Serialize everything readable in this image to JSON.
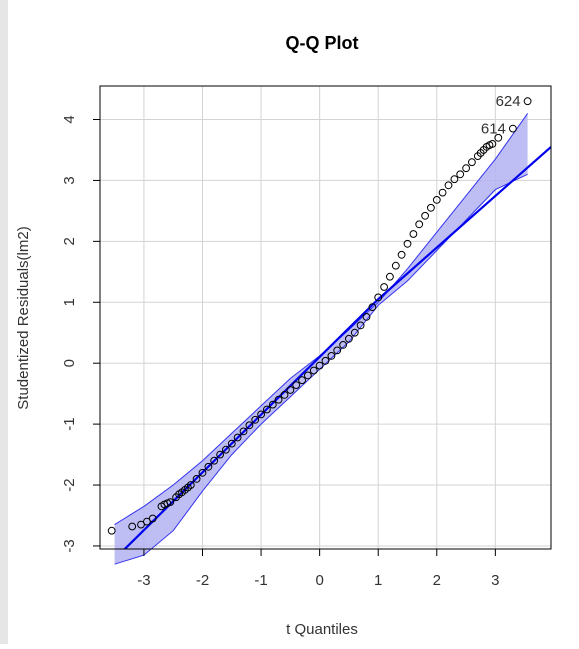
{
  "chart_data": {
    "type": "scatter",
    "title": "Q-Q Plot",
    "xlabel": "t Quantiles",
    "ylabel": "Studentized Residuals(lm2)",
    "xlim": [
      -3.75,
      3.95
    ],
    "ylim": [
      -3.05,
      4.55
    ],
    "x_ticks": [
      "-3",
      "-2",
      "-1",
      "0",
      "1",
      "2",
      "3"
    ],
    "y_ticks": [
      "-3",
      "-2",
      "-1",
      "0",
      "1",
      "2",
      "3",
      "4"
    ],
    "grid": true,
    "colors": {
      "points": "#000000",
      "line": "#0000ee",
      "band_fill": "#b3b3f2",
      "band_edge": "#3333ee",
      "grid": "#d3d3d3"
    },
    "points_x": [
      -3.55,
      -3.2,
      -3.05,
      -2.95,
      -2.85,
      -2.7,
      -2.65,
      -2.6,
      -2.55,
      -2.45,
      -2.4,
      -2.35,
      -2.3,
      -2.25,
      -2.2,
      -2.1,
      -2.0,
      -1.9,
      -1.8,
      -1.7,
      -1.6,
      -1.5,
      -1.4,
      -1.3,
      -1.2,
      -1.1,
      -1.0,
      -0.9,
      -0.8,
      -0.7,
      -0.6,
      -0.5,
      -0.4,
      -0.3,
      -0.2,
      -0.1,
      0.0,
      0.1,
      0.2,
      0.3,
      0.4,
      0.5,
      0.6,
      0.7,
      0.8,
      0.9,
      1.0,
      1.1,
      1.2,
      1.3,
      1.4,
      1.5,
      1.6,
      1.7,
      1.8,
      1.9,
      2.0,
      2.1,
      2.2,
      2.3,
      2.4,
      2.5,
      2.6,
      2.7,
      2.75,
      2.8,
      2.85,
      2.9,
      2.95,
      3.05,
      3.3,
      3.55
    ],
    "points_y": [
      -2.75,
      -2.68,
      -2.65,
      -2.6,
      -2.55,
      -2.35,
      -2.32,
      -2.3,
      -2.28,
      -2.2,
      -2.15,
      -2.12,
      -2.08,
      -2.04,
      -2.0,
      -1.9,
      -1.8,
      -1.7,
      -1.6,
      -1.5,
      -1.42,
      -1.32,
      -1.22,
      -1.12,
      -1.02,
      -0.93,
      -0.84,
      -0.76,
      -0.68,
      -0.6,
      -0.52,
      -0.44,
      -0.36,
      -0.28,
      -0.2,
      -0.12,
      -0.04,
      0.04,
      0.12,
      0.21,
      0.3,
      0.4,
      0.5,
      0.62,
      0.76,
      0.92,
      1.08,
      1.25,
      1.42,
      1.6,
      1.78,
      1.96,
      2.12,
      2.28,
      2.42,
      2.55,
      2.68,
      2.8,
      2.92,
      3.02,
      3.1,
      3.2,
      3.3,
      3.4,
      3.45,
      3.5,
      3.55,
      3.58,
      3.6,
      3.7,
      3.85,
      4.3
    ],
    "point_labels": [
      {
        "text": "624",
        "x": 3.55,
        "y": 4.3
      },
      {
        "text": "614",
        "x": 3.3,
        "y": 3.85
      }
    ],
    "reference_line": {
      "type": "piecewise",
      "x": [
        -3.75,
        1.0,
        3.95
      ],
      "y": [
        -3.45,
        1.05,
        3.55
      ]
    },
    "confidence_band": {
      "x": [
        -3.5,
        -3.0,
        -2.5,
        -2.0,
        -1.5,
        -1.0,
        -0.5,
        0.0,
        0.5,
        1.0,
        1.5,
        2.0,
        2.5,
        3.0,
        3.55
      ],
      "upper": [
        -2.65,
        -2.35,
        -2.0,
        -1.6,
        -1.15,
        -0.7,
        -0.25,
        0.12,
        0.55,
        1.0,
        1.55,
        2.15,
        2.75,
        3.35,
        4.1
      ],
      "lower": [
        -3.3,
        -3.15,
        -2.75,
        -2.1,
        -1.5,
        -1.0,
        -0.55,
        -0.1,
        0.35,
        0.95,
        1.35,
        1.85,
        2.35,
        2.85,
        3.1
      ]
    }
  }
}
